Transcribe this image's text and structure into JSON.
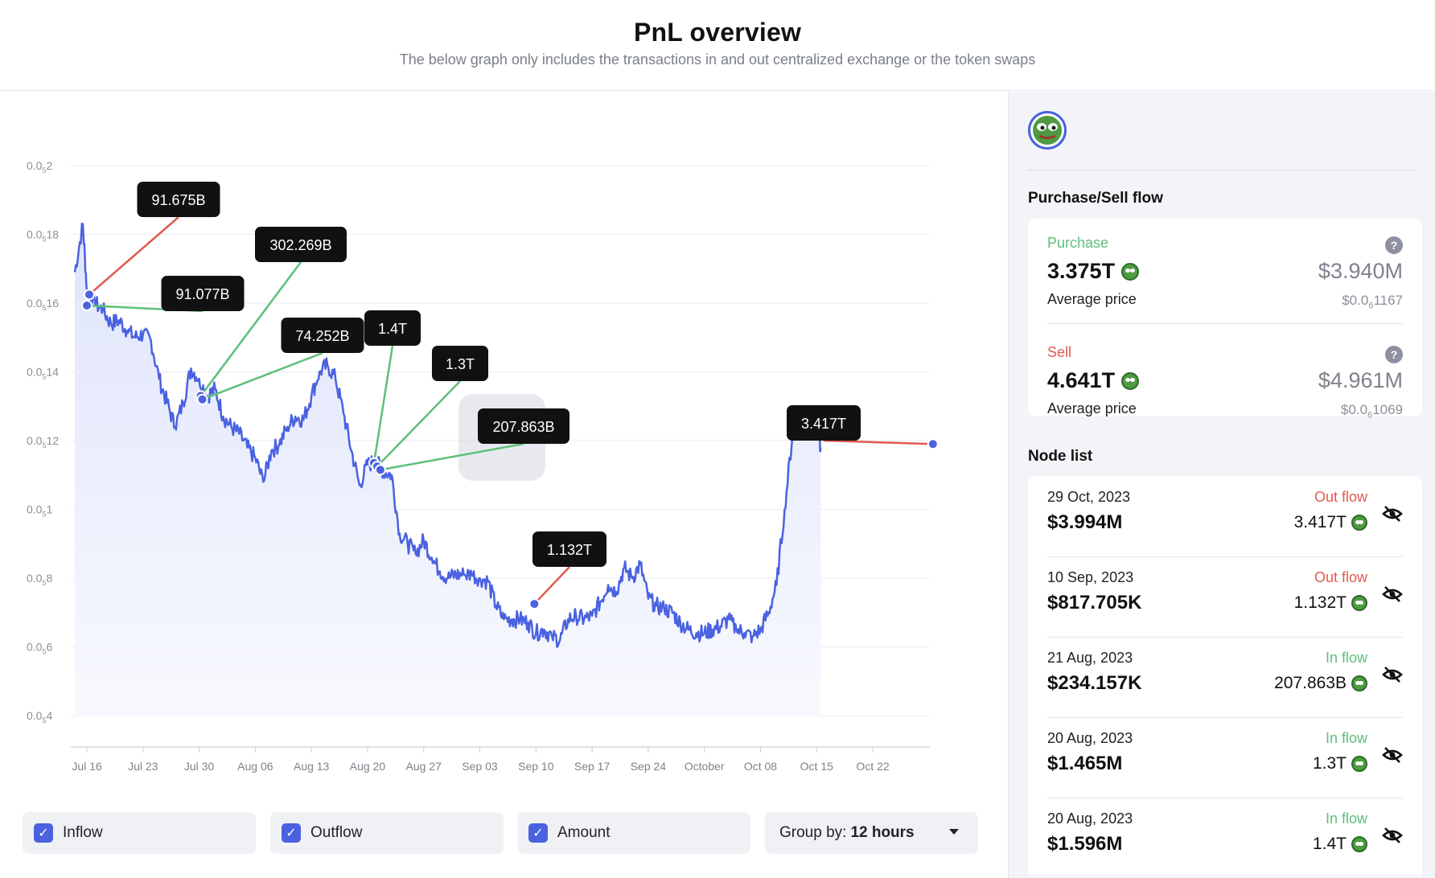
{
  "header": {
    "title": "PnL overview",
    "subtitle": "The below graph only includes the transactions in and out centralized exchange or the token swaps"
  },
  "colors": {
    "line": "#4a62e0",
    "inflow": "#5cbf7a",
    "outflow": "#e05a4f",
    "tag_bg": "#111111"
  },
  "chart_data": {
    "type": "line",
    "y_ticks": [
      {
        "base": "0.0",
        "sub": "5",
        "tail": "4"
      },
      {
        "base": "0.0",
        "sub": "5",
        "tail": "6"
      },
      {
        "base": "0.0",
        "sub": "5",
        "tail": "8"
      },
      {
        "base": "0.0",
        "sub": "5",
        "tail": "1"
      },
      {
        "base": "0.0",
        "sub": "5",
        "tail": "12"
      },
      {
        "base": "0.0",
        "sub": "5",
        "tail": "14"
      },
      {
        "base": "0.0",
        "sub": "5",
        "tail": "16"
      },
      {
        "base": "0.0",
        "sub": "5",
        "tail": "18"
      },
      {
        "base": "0.0",
        "sub": "5",
        "tail": "2"
      }
    ],
    "x_labels": [
      "Jul 16",
      "Jul 23",
      "Jul 30",
      "Aug 06",
      "Aug 13",
      "Aug 20",
      "Aug 27",
      "Sep 03",
      "Sep 10",
      "Sep 17",
      "Sep 24",
      "October",
      "Oct 08",
      "Oct 15",
      "Oct 22"
    ],
    "x_start_label": "Jul 16",
    "days": [
      -1.5,
      -0.5,
      0,
      1,
      2,
      3,
      4,
      5,
      6,
      7,
      8,
      9,
      10,
      11,
      12,
      13,
      14,
      15,
      16,
      17,
      18,
      19,
      20,
      21,
      22,
      23,
      24,
      25,
      26,
      27,
      28,
      29,
      30,
      31,
      32,
      33,
      34,
      35,
      36,
      37,
      38,
      39,
      40,
      41,
      42,
      43,
      44,
      45,
      46,
      47,
      48,
      49,
      50,
      51,
      52,
      53,
      54,
      55,
      56,
      57,
      58,
      59,
      60,
      61,
      62,
      63,
      64,
      65,
      66,
      67,
      68,
      69,
      70,
      71,
      72,
      73,
      74,
      75,
      76,
      77,
      78,
      79,
      80,
      81,
      82,
      83,
      84,
      85,
      86,
      87,
      88,
      89,
      90,
      91,
      91.5
    ],
    "price_e5": [
      0.169,
      0.183,
      0.164,
      0.16,
      0.158,
      0.154,
      0.155,
      0.152,
      0.15,
      0.151,
      0.149,
      0.138,
      0.131,
      0.124,
      0.131,
      0.141,
      0.138,
      0.133,
      0.135,
      0.127,
      0.124,
      0.122,
      0.118,
      0.115,
      0.108,
      0.117,
      0.119,
      0.124,
      0.127,
      0.126,
      0.133,
      0.14,
      0.142,
      0.138,
      0.128,
      0.117,
      0.107,
      0.113,
      0.114,
      0.111,
      0.11,
      0.093,
      0.09,
      0.087,
      0.091,
      0.086,
      0.082,
      0.08,
      0.081,
      0.081,
      0.081,
      0.08,
      0.079,
      0.072,
      0.068,
      0.068,
      0.068,
      0.067,
      0.064,
      0.065,
      0.063,
      0.062,
      0.068,
      0.069,
      0.068,
      0.069,
      0.073,
      0.078,
      0.076,
      0.083,
      0.08,
      0.084,
      0.074,
      0.072,
      0.071,
      0.07,
      0.067,
      0.065,
      0.064,
      0.064,
      0.065,
      0.066,
      0.068,
      0.065,
      0.064,
      0.063,
      0.065,
      0.07,
      0.078,
      0.1,
      0.122,
      0.128,
      0.125,
      0.124,
      0.118
    ],
    "ylim": [
      0.04,
      0.2
    ],
    "markers": [
      {
        "label": "91.675B",
        "flow": "out",
        "day": 0.3,
        "price": 0.1625
      },
      {
        "label": "91.077B",
        "flow": "in",
        "day": 0,
        "price": 0.1593
      },
      {
        "label": "302.269B",
        "flow": "in",
        "day": 14.2,
        "price": 0.133
      },
      {
        "label": "74.252B",
        "flow": "in",
        "day": 14.4,
        "price": 0.132
      },
      {
        "label": "1.4T",
        "flow": "in",
        "day": 35.8,
        "price": 0.1135
      },
      {
        "label": "1.3T",
        "flow": "in",
        "day": 36.2,
        "price": 0.1125
      },
      {
        "label": "207.863B",
        "flow": "in",
        "day": 36.6,
        "price": 0.1115
      },
      {
        "label": "1.132T",
        "flow": "out",
        "day": 55.8,
        "price": 0.0725
      },
      {
        "label": "3.417T",
        "flow": "out",
        "day": 105.5,
        "price": 0.119
      }
    ]
  },
  "controls": {
    "inflow_label": "Inflow",
    "outflow_label": "Outflow",
    "amount_label": "Amount",
    "group_prefix": "Group by:",
    "group_value": "12 hours",
    "check_glyph": "✓"
  },
  "sidebar": {
    "token_icon": "pepe-token-icon",
    "flow_title": "Purchase/Sell flow",
    "purchase": {
      "label": "Purchase",
      "amount": "3.375T",
      "usd": "$3.940M",
      "avg_label": "Average price",
      "avg_base": "$0.0",
      "avg_sub": "6",
      "avg_tail": "1167"
    },
    "sell": {
      "label": "Sell",
      "amount": "4.641T",
      "usd": "$4.961M",
      "avg_label": "Average price",
      "avg_base": "$0.0",
      "avg_sub": "6",
      "avg_tail": "1069"
    },
    "help_glyph": "?",
    "node_title": "Node list",
    "nodes": [
      {
        "date": "29 Oct, 2023",
        "usd": "$3.994M",
        "direction": "Out flow",
        "amount": "3.417T"
      },
      {
        "date": "10 Sep, 2023",
        "usd": "$817.705K",
        "direction": "Out flow",
        "amount": "1.132T"
      },
      {
        "date": "21 Aug, 2023",
        "usd": "$234.157K",
        "direction": "In flow",
        "amount": "207.863B"
      },
      {
        "date": "20 Aug, 2023",
        "usd": "$1.465M",
        "direction": "In flow",
        "amount": "1.3T"
      },
      {
        "date": "20 Aug, 2023",
        "usd": "$1.596M",
        "direction": "In flow",
        "amount": "1.4T"
      }
    ]
  }
}
